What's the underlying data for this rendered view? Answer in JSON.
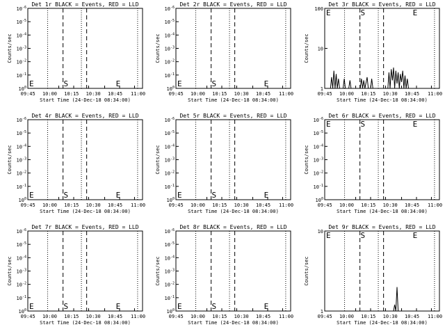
{
  "chart_data": [
    {
      "type": "line",
      "title": "Det 1r BLACK = Events, RED = LLD",
      "xlabel": "Start Time (24-Dec-18 08:34:00)",
      "ylabel": "Counts/sec",
      "x_ticks": [
        "09:45",
        "10:00",
        "10:15",
        "10:30",
        "10:45",
        "11:00"
      ],
      "y_ticks": [
        "10^0",
        "10^-1",
        "10^-2",
        "10^-3",
        "10^-4",
        "10^-5",
        "10^-6"
      ],
      "yscale": "log",
      "markers": [
        "E",
        "S",
        "E"
      ],
      "series": []
    },
    {
      "type": "line",
      "title": "Det 2r BLACK = Events, RED = LLD",
      "xlabel": "Start Time (24-Dec-18 08:34:00)",
      "ylabel": "Counts/sec",
      "x_ticks": [
        "09:45",
        "10:00",
        "10:15",
        "10:30",
        "10:45",
        "11:00"
      ],
      "y_ticks": [
        "10^0",
        "10^-1",
        "10^-2",
        "10^-3",
        "10^-4",
        "10^-5",
        "10^-6"
      ],
      "yscale": "log",
      "markers": [
        "E",
        "S",
        "E"
      ],
      "series": []
    },
    {
      "type": "line",
      "title": "Det 3r BLACK = Events, RED = LLD",
      "xlabel": "Start Time (24-Dec-18 08:34:00)",
      "ylabel": "Counts/sec",
      "x_ticks": [
        "09:45",
        "10:00",
        "10:15",
        "10:30",
        "10:45",
        "11:00"
      ],
      "y_ticks": [
        "1",
        "10",
        "100"
      ],
      "yscale": "log",
      "markers": [
        "E",
        "S",
        "E"
      ],
      "series": []
    },
    {
      "type": "line",
      "title": "Det 4r BLACK = Events, RED = LLD",
      "xlabel": "Start Time (24-Dec-18 08:34:00)",
      "ylabel": "Counts/sec",
      "x_ticks": [
        "09:45",
        "10:00",
        "10:15",
        "10:30",
        "10:45",
        "11:00"
      ],
      "y_ticks": [
        "10^0",
        "10^-1",
        "10^-2",
        "10^-3",
        "10^-4",
        "10^-5",
        "10^-6"
      ],
      "yscale": "log",
      "markers": [
        "E",
        "S",
        "E"
      ],
      "series": []
    },
    {
      "type": "line",
      "title": "Det 5r BLACK = Events, RED = LLD",
      "xlabel": "Start Time (24-Dec-18 08:34:00)",
      "ylabel": "Counts/sec",
      "x_ticks": [
        "09:45",
        "10:00",
        "10:15",
        "10:30",
        "10:45",
        "11:00"
      ],
      "y_ticks": [
        "10^0",
        "10^-1",
        "10^-2",
        "10^-3",
        "10^-4",
        "10^-5",
        "10^-6"
      ],
      "yscale": "log",
      "markers": [
        "E",
        "S",
        "E"
      ],
      "series": []
    },
    {
      "type": "line",
      "title": "Det 6r BLACK = Events, RED = LLD",
      "xlabel": "Start Time (24-Dec-18 08:34:00)",
      "ylabel": "Counts/sec",
      "x_ticks": [
        "09:45",
        "10:00",
        "10:15",
        "10:30",
        "10:45",
        "11:00"
      ],
      "y_ticks": [
        "10^0",
        "10^-1",
        "10^-2",
        "10^-3",
        "10^-4",
        "10^-5",
        "10^-6"
      ],
      "yscale": "log",
      "markers": [
        "E",
        "S",
        "E"
      ],
      "series": []
    },
    {
      "type": "line",
      "title": "Det 7r BLACK = Events, RED = LLD",
      "xlabel": "Start Time (24-Dec-18 08:34:00)",
      "ylabel": "Counts/sec",
      "x_ticks": [
        "09:45",
        "10:00",
        "10:15",
        "10:30",
        "10:45",
        "11:00"
      ],
      "y_ticks": [
        "10^0",
        "10^-1",
        "10^-2",
        "10^-3",
        "10^-4",
        "10^-5",
        "10^-6"
      ],
      "yscale": "log",
      "markers": [
        "E",
        "S",
        "E"
      ],
      "series": []
    },
    {
      "type": "line",
      "title": "Det 8r BLACK = Events, RED = LLD",
      "xlabel": "Start Time (24-Dec-18 08:34:00)",
      "ylabel": "Counts/sec",
      "x_ticks": [
        "09:45",
        "10:00",
        "10:15",
        "10:30",
        "10:45",
        "11:00"
      ],
      "y_ticks": [
        "10^0",
        "10^-1",
        "10^-2",
        "10^-3",
        "10^-4",
        "10^-5",
        "10^-6"
      ],
      "yscale": "log",
      "markers": [
        "E",
        "S",
        "E"
      ],
      "series": []
    },
    {
      "type": "line",
      "title": "Det 9r BLACK = Events, RED = LLD",
      "xlabel": "Start Time (24-Dec-18 08:34:00)",
      "ylabel": "Counts/sec",
      "x_ticks": [
        "09:45",
        "10:00",
        "10:15",
        "10:30",
        "10:45",
        "11:00"
      ],
      "y_ticks": [
        "1",
        "10"
      ],
      "yscale": "log",
      "markers": [
        "E",
        "S",
        "E"
      ],
      "series": []
    }
  ]
}
